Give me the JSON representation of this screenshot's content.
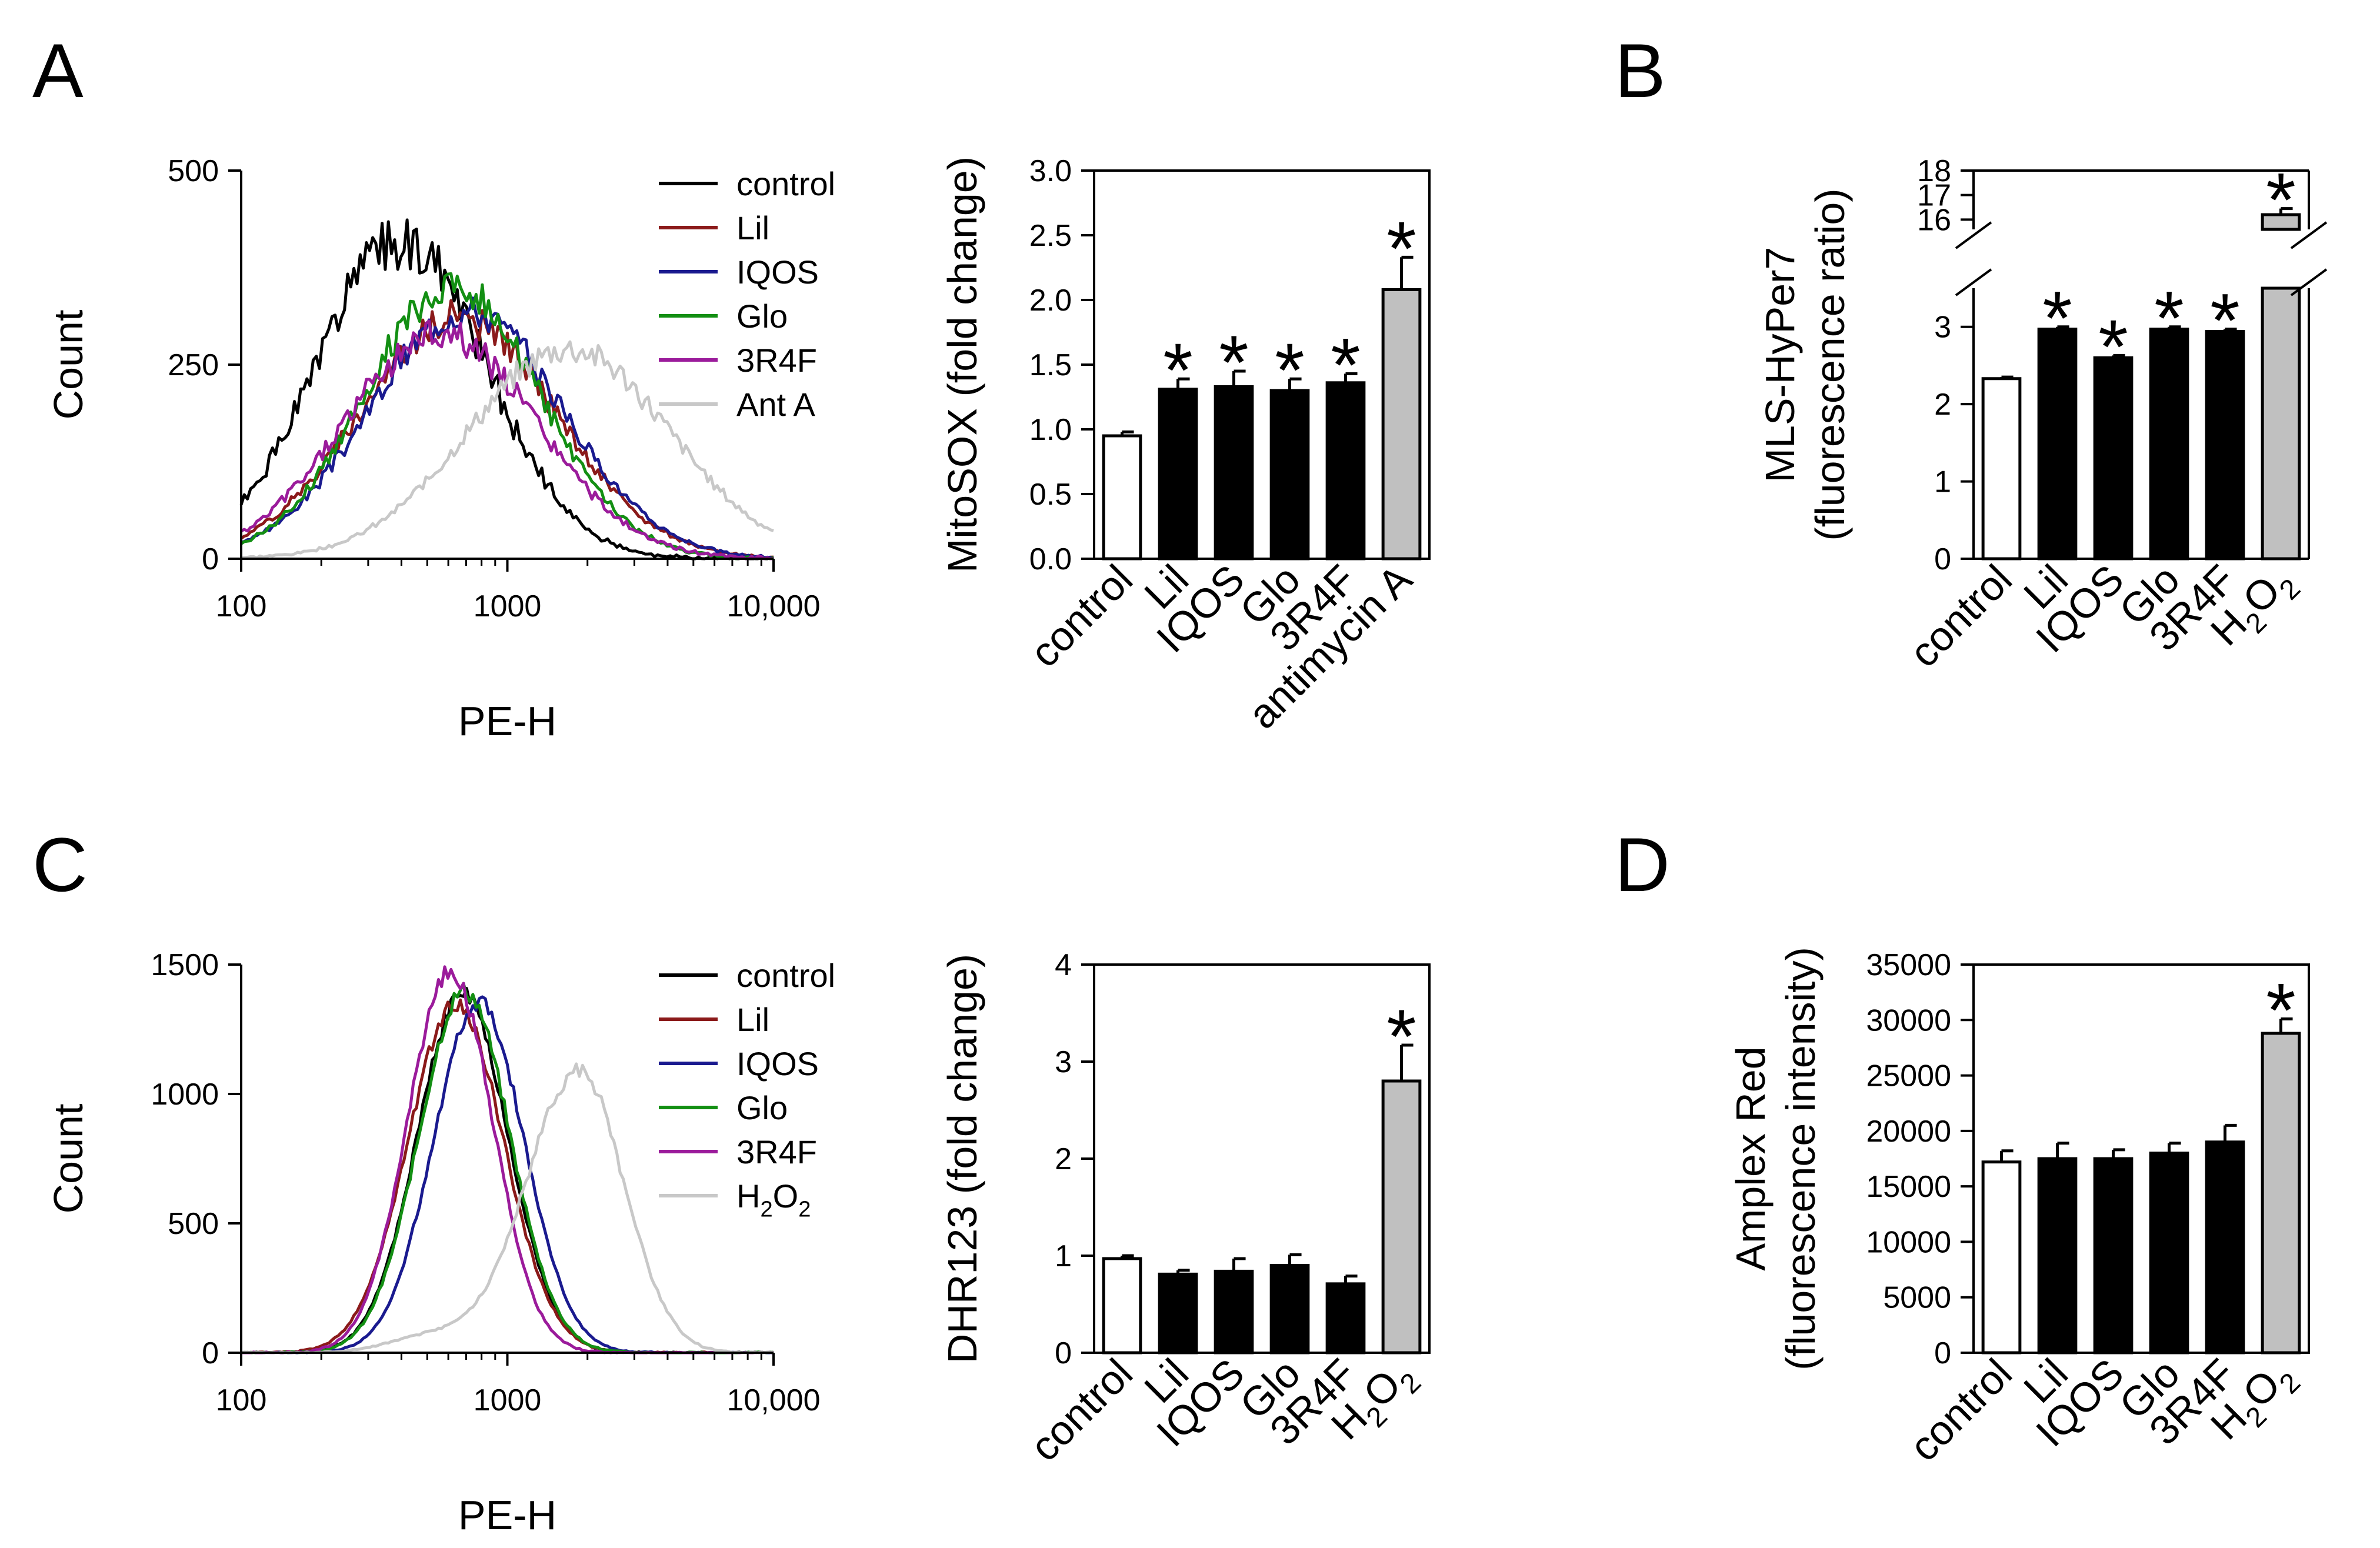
{
  "panels": {
    "A": "A",
    "B": "B",
    "C": "C",
    "D": "D"
  },
  "chart_data": [
    {
      "id": "hist-a",
      "type": "line",
      "panel": "A",
      "xlabel": "PE-H",
      "ylabel": "Count",
      "xscale": "log",
      "xlim": [
        100,
        10000
      ],
      "ylim": [
        0,
        500
      ],
      "xticks": [
        100,
        1000,
        10000
      ],
      "xtick_labels": [
        "100",
        "1000",
        "10,000"
      ],
      "yticks": [
        0,
        250,
        500
      ],
      "ytick_labels": [
        "0",
        "250",
        "500"
      ],
      "legend": "top-right",
      "series": [
        {
          "name": "control",
          "color": "#000000",
          "shape": "noisy",
          "peak": 400,
          "peak_height": 410,
          "sigma": 0.32,
          "noise": 0.09,
          "seed": 1
        },
        {
          "name": "Lil",
          "color": "#8b1a1a",
          "shape": "noisy",
          "peak": 650,
          "peak_height": 310,
          "sigma": 0.37,
          "noise": 0.07,
          "seed": 2
        },
        {
          "name": "IQOS",
          "color": "#1a1a8f",
          "shape": "noisy",
          "peak": 700,
          "peak_height": 320,
          "sigma": 0.36,
          "noise": 0.07,
          "seed": 3
        },
        {
          "name": "Glo",
          "color": "#138f13",
          "shape": "noisy",
          "peak": 620,
          "peak_height": 350,
          "sigma": 0.33,
          "noise": 0.07,
          "seed": 4
        },
        {
          "name": "3R4F",
          "color": "#9b1b9b",
          "shape": "noisy",
          "peak": 560,
          "peak_height": 290,
          "sigma": 0.36,
          "noise": 0.08,
          "seed": 5
        },
        {
          "name": "Ant A",
          "color": "#c8c8c8",
          "shape": "noisy",
          "peak": 1700,
          "peak_height": 270,
          "sigma": 0.38,
          "noise": 0.07,
          "seed": 6
        }
      ]
    },
    {
      "id": "bar-a",
      "type": "bar",
      "panel": "A",
      "ylabel": "MitoSOX (fold change)",
      "categories": [
        "control",
        "Lil",
        "IQOS",
        "Glo",
        "3R4F",
        "antimycin A"
      ],
      "values": [
        0.95,
        1.31,
        1.33,
        1.3,
        1.36,
        2.08
      ],
      "errors": [
        0.03,
        0.08,
        0.12,
        0.09,
        0.07,
        0.25
      ],
      "fills": [
        "#ffffff",
        "#000000",
        "#000000",
        "#000000",
        "#000000",
        "#c0c0c0"
      ],
      "significance": [
        "",
        "*",
        "*",
        "*",
        "*",
        "*"
      ],
      "ylim": [
        0,
        3.0
      ],
      "yticks": [
        0,
        0.5,
        1.0,
        1.5,
        2.0,
        2.5,
        3.0
      ],
      "ytick_labels": [
        "0.0",
        "0.5",
        "1.0",
        "1.5",
        "2.0",
        "2.5",
        "3.0"
      ]
    },
    {
      "id": "bar-b",
      "type": "bar",
      "panel": "B",
      "ylabel": [
        "MLS-HyPer7",
        "(fluorescence ratio)"
      ],
      "categories": [
        "control",
        "Lil",
        "IQOS",
        "Glo",
        "3R4F",
        "H2O2"
      ],
      "values": [
        2.33,
        2.97,
        2.6,
        2.97,
        2.94,
        16.2
      ],
      "errors": [
        0.02,
        0.03,
        0.03,
        0.03,
        0.03,
        0.25
      ],
      "fills": [
        "#ffffff",
        "#000000",
        "#000000",
        "#000000",
        "#000000",
        "#c0c0c0"
      ],
      "significance": [
        "",
        "*",
        "*",
        "*",
        "*",
        "*"
      ],
      "broken_axis": {
        "lower": [
          0,
          3.5
        ],
        "upper": [
          15.6,
          18
        ]
      },
      "yticks_lower": [
        0,
        1,
        2,
        3
      ],
      "yticks_upper": [
        16,
        17,
        18
      ],
      "ytick_labels_lower": [
        "0",
        "1",
        "2",
        "3"
      ],
      "ytick_labels_upper": [
        "16",
        "17",
        "18"
      ]
    },
    {
      "id": "hist-c",
      "type": "line",
      "panel": "C",
      "xlabel": "PE-H",
      "ylabel": "Count",
      "xscale": "log",
      "xlim": [
        100,
        10000
      ],
      "ylim": [
        0,
        1500
      ],
      "xticks": [
        100,
        1000,
        10000
      ],
      "xtick_labels": [
        "100",
        "1000",
        "10,000"
      ],
      "yticks": [
        0,
        500,
        1000,
        1500
      ],
      "ytick_labels": [
        "0",
        "500",
        "1000",
        "1500"
      ],
      "legend": "top-right",
      "series": [
        {
          "name": "control",
          "color": "#000000",
          "shape": "smooth",
          "peak": 680,
          "peak_height": 1390,
          "sigma": 0.17,
          "noise": 0.025,
          "seed": 11
        },
        {
          "name": "Lil",
          "color": "#8b1a1a",
          "shape": "smooth",
          "peak": 640,
          "peak_height": 1350,
          "sigma": 0.18,
          "noise": 0.025,
          "seed": 12
        },
        {
          "name": "IQOS",
          "color": "#1a1a8f",
          "shape": "smooth",
          "peak": 780,
          "peak_height": 1360,
          "sigma": 0.17,
          "noise": 0.025,
          "seed": 13
        },
        {
          "name": "Glo",
          "color": "#138f13",
          "shape": "smooth",
          "peak": 690,
          "peak_height": 1400,
          "sigma": 0.17,
          "noise": 0.025,
          "seed": 14
        },
        {
          "name": "3R4F",
          "color": "#9b1b9b",
          "shape": "smooth",
          "peak": 610,
          "peak_height": 1480,
          "sigma": 0.16,
          "noise": 0.025,
          "seed": 15
        },
        {
          "name": "H2O2",
          "color": "#c8c8c8",
          "shape": "smooth",
          "peak": 1850,
          "peak_height": 1090,
          "sigma": 0.17,
          "noise": 0.03,
          "seed": 16,
          "tail": 0.4
        }
      ]
    },
    {
      "id": "bar-c",
      "type": "bar",
      "panel": "C",
      "ylabel": "DHR123 (fold change)",
      "categories": [
        "control",
        "Lil",
        "IQOS",
        "Glo",
        "3R4F",
        "H2O2"
      ],
      "values": [
        0.97,
        0.81,
        0.84,
        0.9,
        0.71,
        2.8
      ],
      "errors": [
        0.03,
        0.04,
        0.13,
        0.11,
        0.08,
        0.37
      ],
      "fills": [
        "#ffffff",
        "#000000",
        "#000000",
        "#000000",
        "#000000",
        "#c0c0c0"
      ],
      "significance": [
        "",
        "",
        "",
        "",
        "",
        "*"
      ],
      "ylim": [
        0,
        4
      ],
      "yticks": [
        0,
        1,
        2,
        3,
        4
      ],
      "ytick_labels": [
        "0",
        "1",
        "2",
        "3",
        "4"
      ]
    },
    {
      "id": "bar-d",
      "type": "bar",
      "panel": "D",
      "ylabel": [
        "Amplex Red",
        "(fluorescence intensity)"
      ],
      "categories": [
        "control",
        "Lil",
        "IQOS",
        "Glo",
        "3R4F",
        "H2O2"
      ],
      "values": [
        17200,
        17500,
        17500,
        18000,
        19000,
        28800
      ],
      "errors": [
        1000,
        1400,
        800,
        900,
        1500,
        1300
      ],
      "fills": [
        "#ffffff",
        "#000000",
        "#000000",
        "#000000",
        "#000000",
        "#c0c0c0"
      ],
      "significance": [
        "",
        "",
        "",
        "",
        "",
        "*"
      ],
      "ylim": [
        0,
        35000
      ],
      "yticks": [
        0,
        5000,
        10000,
        15000,
        20000,
        25000,
        30000,
        35000
      ],
      "ytick_labels": [
        "0",
        "5000",
        "10000",
        "15000",
        "20000",
        "25000",
        "30000",
        "35000"
      ]
    }
  ]
}
